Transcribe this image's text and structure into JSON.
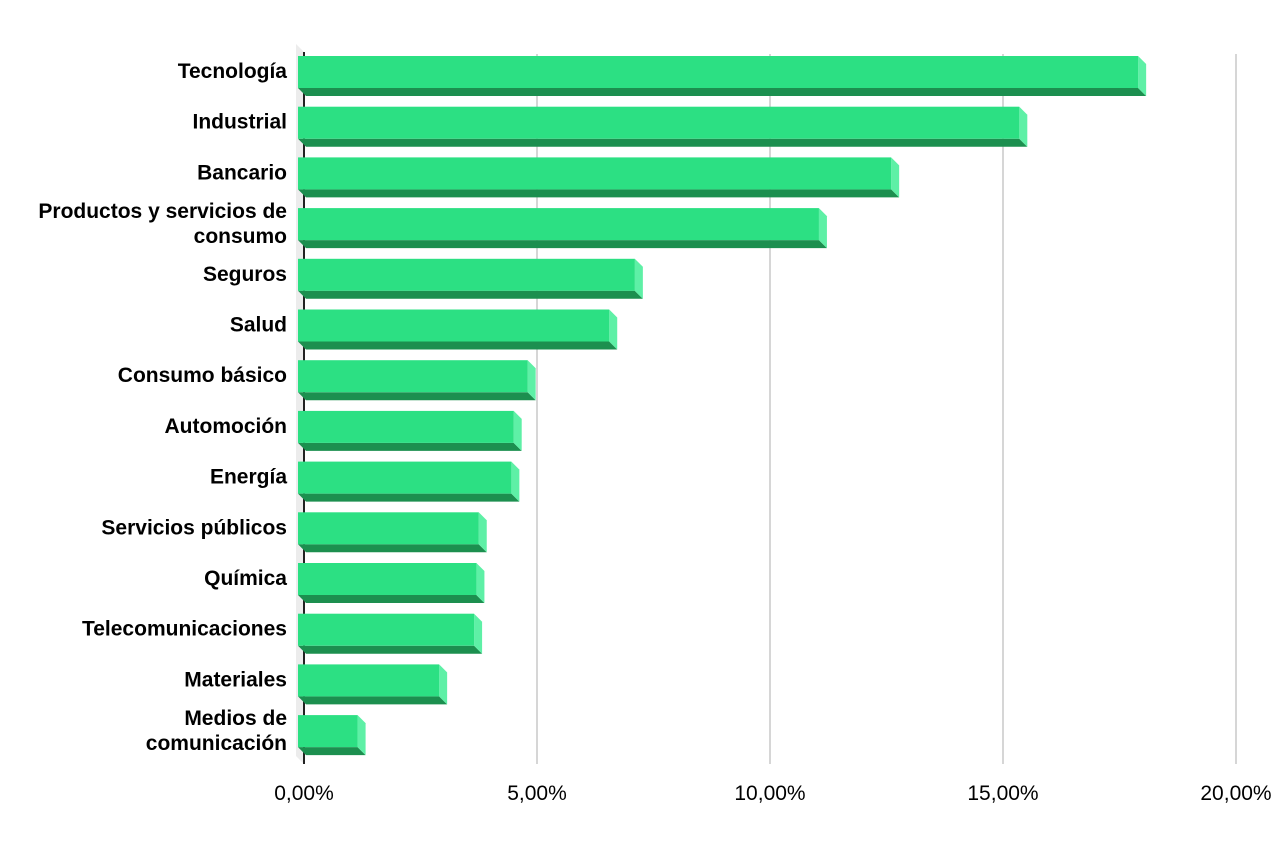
{
  "chart_data": {
    "type": "bar",
    "orientation": "horizontal",
    "style": "3d",
    "categories": [
      "Tecnología",
      "Industrial",
      "Bancario",
      "Productos y servicios de consumo",
      "Seguros",
      "Salud",
      "Consumo básico",
      "Automoción",
      "Energía",
      "Servicios públicos",
      "Química",
      "Telecomunicaciones",
      "Materiales",
      "Medios de comunicación"
    ],
    "values": [
      17.9,
      15.35,
      12.6,
      11.05,
      7.1,
      6.55,
      4.8,
      4.5,
      4.45,
      3.75,
      3.7,
      3.65,
      2.9,
      1.15
    ],
    "value_unit": "%",
    "xlim": [
      0,
      20
    ],
    "x_ticks": [
      "0,00%",
      "5,00%",
      "10,00%",
      "15,00%",
      "20,00%"
    ],
    "grid": "vertical",
    "legend": "none",
    "colors": {
      "bar_face": "#2ce083",
      "bar_shadow": "#1c8f4f",
      "bar_side": "#5ef0a6",
      "grid": "#c8c8c8",
      "axis": "#222222"
    }
  }
}
